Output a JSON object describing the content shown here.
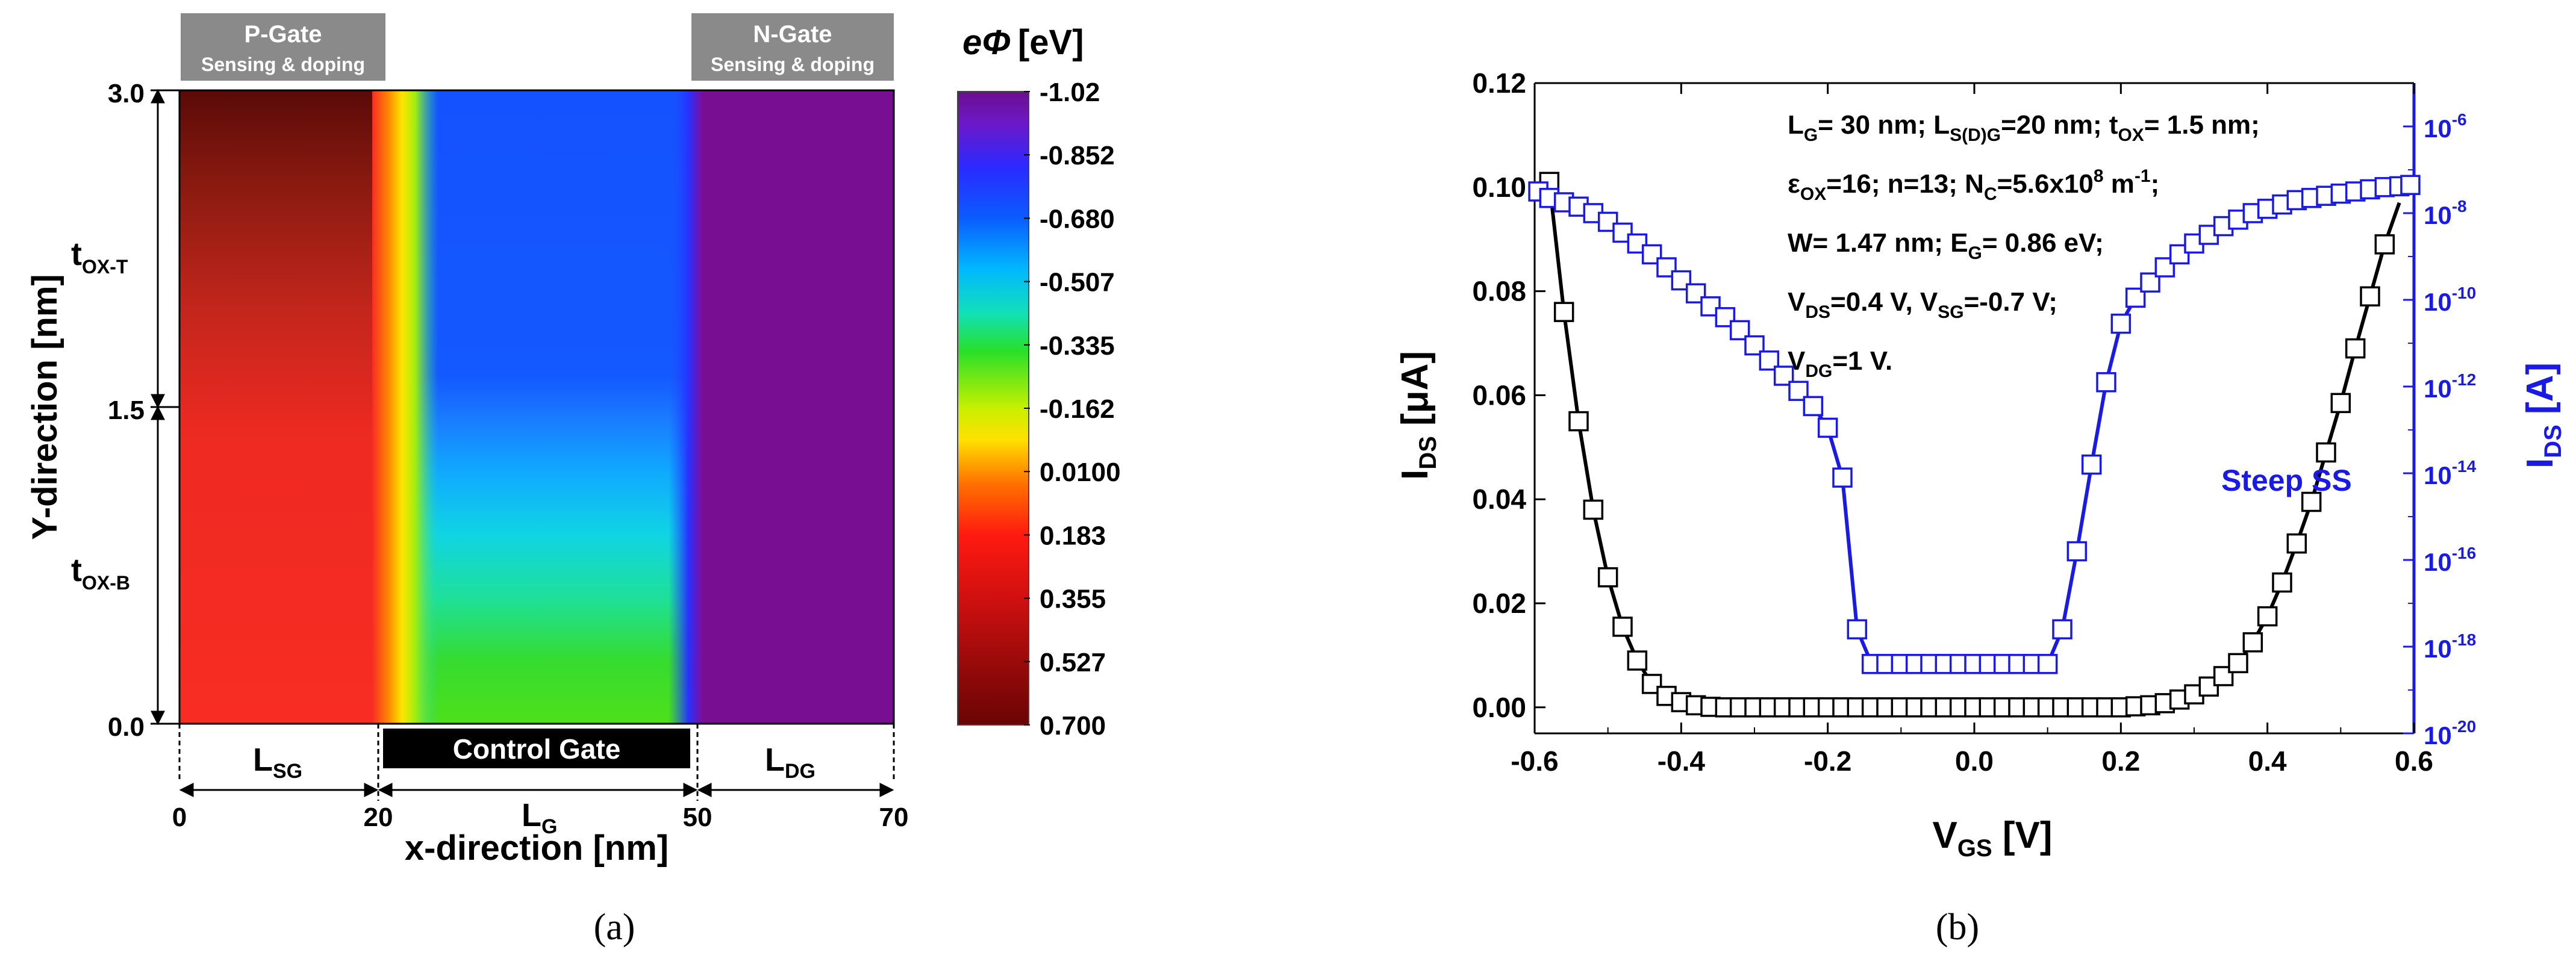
{
  "panel_a_caption": "(a)",
  "panel_b_caption": "(b)",
  "chart_data": [
    {
      "type": "heatmap",
      "panel": "a",
      "xlabel": "x-direction [nm]",
      "ylabel": "Y-direction [nm]",
      "xlim": [
        0,
        70
      ],
      "ylim": [
        0,
        3
      ],
      "x_ticks": [
        "0",
        "20",
        "50",
        "70"
      ],
      "y_ticks": [
        "0.0",
        "1.5",
        "3.0"
      ],
      "gate_labels": {
        "p_gate_title": "P-Gate",
        "p_gate_sub": "Sensing & doping",
        "n_gate_title": "N-Gate",
        "n_gate_sub": "Sensing & doping",
        "control_gate": "Control Gate"
      },
      "region_labels": {
        "lsg_main": "L",
        "lsg_sub": "SG",
        "lg_main": "L",
        "lg_sub": "G",
        "ldg_main": "L",
        "ldg_sub": "DG",
        "tox_t_main": "t",
        "tox_t_sub": "OX-T",
        "tox_b_main": "t",
        "tox_b_sub": "OX-B"
      },
      "colorbar": {
        "title_symbol": "eΦ",
        "title_unit": "[eV]",
        "ticks": [
          "-1.02",
          "-0.852",
          "-0.680",
          "-0.507",
          "-0.335",
          "-0.162",
          "0.0100",
          "0.183",
          "0.355",
          "0.527",
          "0.700"
        ],
        "min": -1.02,
        "max": 0.7
      },
      "field": {
        "source_region_x": [
          0,
          20
        ],
        "source_potential_top": 0.6,
        "source_potential_bottom": 0.25,
        "channel_region_x": [
          20,
          50
        ],
        "channel_potential_top": -0.7,
        "channel_potential_bottom": -0.45,
        "drain_region_x": [
          50,
          70
        ],
        "drain_potential": -0.96
      }
    },
    {
      "type": "line",
      "panel": "b",
      "xlabel_main": "V",
      "xlabel_sub": "GS",
      "xlabel_unit": " [V]",
      "ylabel_left_main": "I",
      "ylabel_left_sub": "DS",
      "ylabel_left_unit": " [μA]",
      "ylabel_right_main": "I",
      "ylabel_right_sub": "DS",
      "ylabel_right_unit": " [A]",
      "xlim": [
        -0.6,
        0.6
      ],
      "ylim_left": [
        -0.005,
        0.12
      ],
      "ylim_right_log10": [
        -20,
        -5
      ],
      "x_ticks": [
        "-0.6",
        "-0.4",
        "-0.2",
        "0.0",
        "0.2",
        "0.4",
        "0.6"
      ],
      "y_left_ticks": [
        "0.00",
        "0.02",
        "0.04",
        "0.06",
        "0.08",
        "0.10",
        "0.12"
      ],
      "y_right_ticks": [
        {
          "base": "10",
          "exp": "-6",
          "value": -6
        },
        {
          "base": "10",
          "exp": "-8",
          "value": -8
        },
        {
          "base": "10",
          "exp": "-10",
          "value": -10
        },
        {
          "base": "10",
          "exp": "-12",
          "value": -12
        },
        {
          "base": "10",
          "exp": "-14",
          "value": -14
        },
        {
          "base": "10",
          "exp": "-16",
          "value": -16
        },
        {
          "base": "10",
          "exp": "-18",
          "value": -18
        },
        {
          "base": "10",
          "exp": "-20",
          "value": -20
        }
      ],
      "annotation": "Steep SS",
      "params": [
        [
          {
            "t": "L"
          },
          {
            "t": "G",
            "sub": true
          },
          {
            "t": "= 30 nm; L"
          },
          {
            "t": "S(D)G",
            "sub": true
          },
          {
            "t": "=20 nm; t"
          },
          {
            "t": "OX",
            "sub": true
          },
          {
            "t": "= 1.5 nm;"
          }
        ],
        [
          {
            "t": "ε"
          },
          {
            "t": "OX",
            "sub": true
          },
          {
            "t": "=16; n=13; N"
          },
          {
            "t": "C",
            "sub": true
          },
          {
            "t": "=5.6x10"
          },
          {
            "t": "8",
            "sup": true
          },
          {
            "t": " m"
          },
          {
            "t": "-1",
            "sup": true
          },
          {
            "t": ";"
          }
        ],
        [
          {
            "t": "W= 1.47 nm; E"
          },
          {
            "t": "G",
            "sub": true
          },
          {
            "t": "= 0.86 eV;"
          }
        ],
        [
          {
            "t": "V"
          },
          {
            "t": "DS",
            "sub": true
          },
          {
            "t": "=0.4 V, V"
          },
          {
            "t": "SG",
            "sub": true
          },
          {
            "t": "=-0.7 V;"
          }
        ],
        [
          {
            "t": "V"
          },
          {
            "t": "DG",
            "sub": true
          },
          {
            "t": "=1 V."
          }
        ]
      ],
      "series": [
        {
          "name": "IDS linear (μA)",
          "axis": "left",
          "color": "#000000",
          "x": [
            -0.58,
            -0.56,
            -0.54,
            -0.52,
            -0.5,
            -0.48,
            -0.46,
            -0.44,
            -0.42,
            -0.4,
            -0.38,
            -0.36,
            -0.34,
            -0.32,
            -0.3,
            -0.28,
            -0.26,
            -0.24,
            -0.22,
            -0.2,
            -0.18,
            -0.16,
            -0.14,
            -0.12,
            -0.1,
            -0.08,
            -0.06,
            -0.04,
            -0.02,
            0.0,
            0.02,
            0.04,
            0.06,
            0.08,
            0.1,
            0.12,
            0.14,
            0.16,
            0.18,
            0.2,
            0.22,
            0.24,
            0.26,
            0.28,
            0.3,
            0.32,
            0.34,
            0.36,
            0.38,
            0.4,
            0.42,
            0.44,
            0.46,
            0.48,
            0.5,
            0.52,
            0.54,
            0.56,
            0.58
          ],
          "values": [
            0.101,
            0.076,
            0.055,
            0.038,
            0.025,
            0.0155,
            0.009,
            0.0045,
            0.0022,
            0.001,
            0.0004,
            0.0001,
            0,
            0,
            0,
            0,
            0,
            0,
            0,
            0,
            0,
            0,
            0,
            0,
            0,
            0,
            0,
            0,
            0,
            0,
            0,
            0,
            0,
            0,
            0,
            0,
            0,
            0,
            0,
            0,
            0.0002,
            0.0004,
            0.0008,
            0.0015,
            0.0025,
            0.004,
            0.006,
            0.0085,
            0.0125,
            0.0175,
            0.024,
            0.0315,
            0.0395,
            0.049,
            0.0585,
            0.069,
            0.079,
            0.089,
            0.097
          ],
          "marker_x": [
            -0.58,
            -0.56,
            -0.54,
            -0.52,
            -0.5,
            -0.48,
            -0.46,
            -0.44,
            -0.42,
            -0.4,
            -0.38,
            -0.36,
            -0.34,
            -0.32,
            -0.3,
            -0.28,
            -0.26,
            -0.24,
            -0.22,
            -0.2,
            -0.18,
            -0.16,
            -0.14,
            -0.12,
            -0.1,
            -0.08,
            -0.06,
            -0.04,
            -0.02,
            0.0,
            0.02,
            0.04,
            0.06,
            0.08,
            0.1,
            0.12,
            0.14,
            0.16,
            0.18,
            0.2,
            0.22,
            0.24,
            0.26,
            0.28,
            0.3,
            0.32,
            0.34,
            0.36,
            0.38,
            0.4,
            0.42,
            0.44,
            0.46,
            0.48,
            0.5,
            0.52,
            0.54,
            0.56
          ]
        },
        {
          "name": "IDS log (A)",
          "axis": "right",
          "color": "#1a1ae6",
          "x": [
            -0.595,
            -0.58,
            -0.56,
            -0.54,
            -0.52,
            -0.5,
            -0.48,
            -0.46,
            -0.44,
            -0.42,
            -0.4,
            -0.38,
            -0.36,
            -0.34,
            -0.32,
            -0.3,
            -0.28,
            -0.26,
            -0.24,
            -0.22,
            -0.2,
            -0.18,
            -0.16,
            -0.14,
            -0.12,
            -0.1,
            -0.08,
            -0.06,
            -0.04,
            -0.02,
            0.0,
            0.02,
            0.04,
            0.06,
            0.08,
            0.1,
            0.12,
            0.14,
            0.16,
            0.18,
            0.2,
            0.22,
            0.24,
            0.26,
            0.28,
            0.3,
            0.32,
            0.34,
            0.36,
            0.38,
            0.4,
            0.42,
            0.44,
            0.46,
            0.48,
            0.5,
            0.52,
            0.54,
            0.56,
            0.58,
            0.595
          ],
          "log_values": [
            -7.5,
            -7.65,
            -7.75,
            -7.85,
            -8.0,
            -8.2,
            -8.45,
            -8.7,
            -8.95,
            -9.25,
            -9.55,
            -9.85,
            -10.15,
            -10.4,
            -10.7,
            -11.05,
            -11.4,
            -11.75,
            -12.1,
            -12.45,
            -12.95,
            -14.1,
            -17.6,
            -18.4,
            -18.4,
            -18.4,
            -18.4,
            -18.4,
            -18.4,
            -18.4,
            -18.4,
            -18.4,
            -18.4,
            -18.4,
            -18.4,
            -18.4,
            -17.6,
            -15.8,
            -13.8,
            -11.9,
            -10.55,
            -9.95,
            -9.6,
            -9.25,
            -8.95,
            -8.7,
            -8.5,
            -8.3,
            -8.15,
            -8.0,
            -7.9,
            -7.8,
            -7.7,
            -7.65,
            -7.6,
            -7.55,
            -7.5,
            -7.45,
            -7.4,
            -7.38,
            -7.35
          ],
          "marker_x": [
            -0.595,
            -0.58,
            -0.56,
            -0.54,
            -0.52,
            -0.5,
            -0.48,
            -0.46,
            -0.44,
            -0.42,
            -0.4,
            -0.38,
            -0.36,
            -0.34,
            -0.32,
            -0.3,
            -0.28,
            -0.26,
            -0.24,
            -0.22,
            -0.2,
            -0.18,
            -0.16,
            -0.14,
            -0.12,
            -0.1,
            -0.08,
            -0.06,
            -0.04,
            -0.02,
            0.0,
            0.02,
            0.04,
            0.06,
            0.08,
            0.1,
            0.12,
            0.14,
            0.16,
            0.18,
            0.2,
            0.22,
            0.24,
            0.26,
            0.28,
            0.3,
            0.32,
            0.34,
            0.36,
            0.38,
            0.4,
            0.42,
            0.44,
            0.46,
            0.48,
            0.5,
            0.52,
            0.54,
            0.56,
            0.58,
            0.595
          ]
        }
      ]
    }
  ]
}
